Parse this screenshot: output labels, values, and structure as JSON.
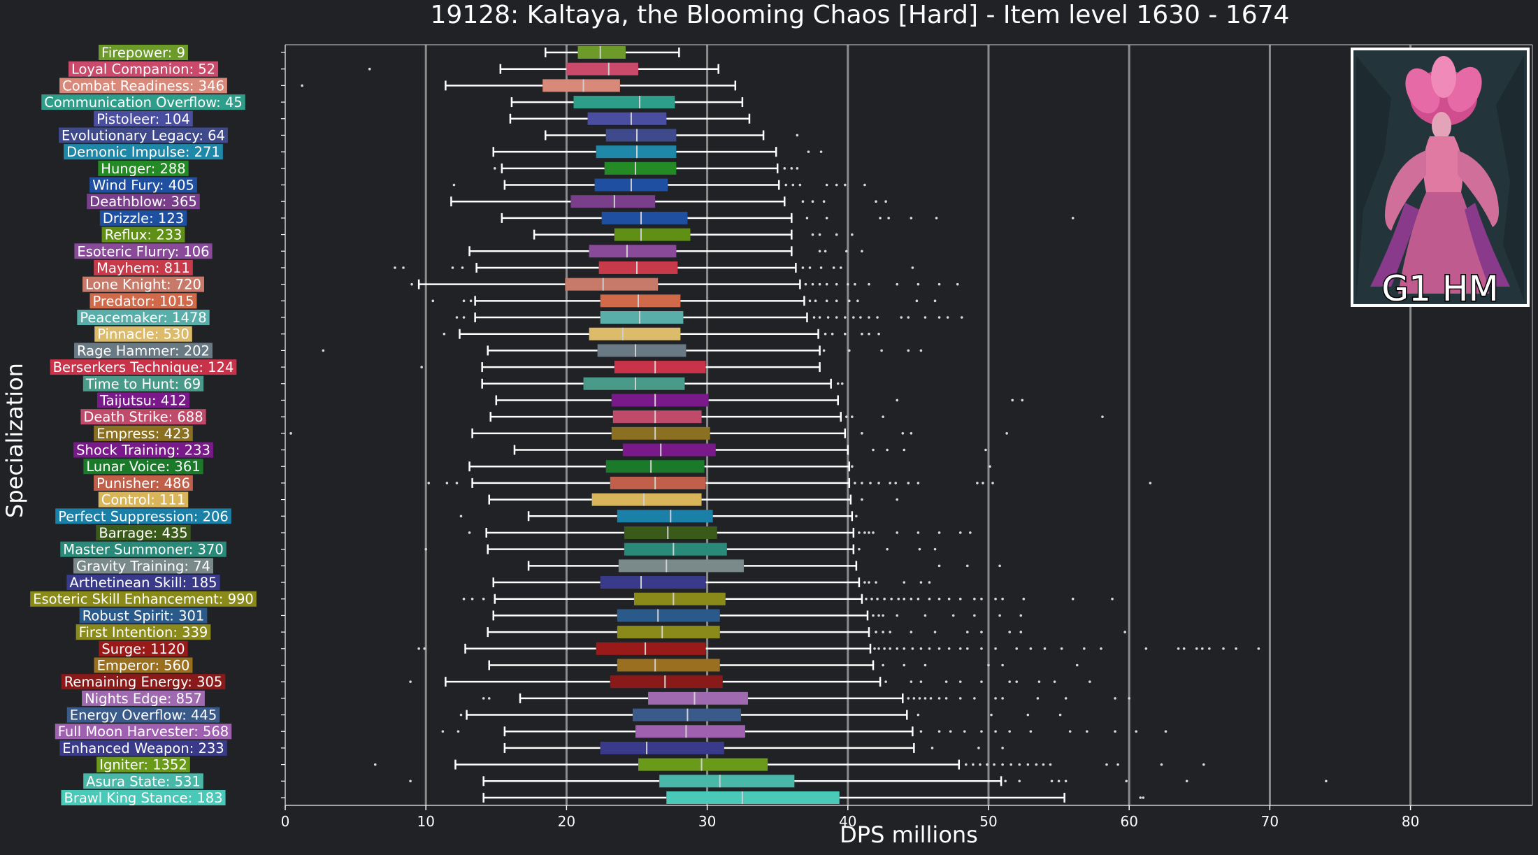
{
  "chart_data": {
    "type": "boxplot",
    "title": "19128: Kaltaya, the Blooming Chaos [Hard] - Item level 1630 - 1674",
    "xlabel": "DPS millions",
    "ylabel": "Specialization",
    "xlim": [
      0,
      89
    ],
    "xticks": [
      0,
      10,
      20,
      30,
      40,
      50,
      60,
      70,
      80
    ],
    "vertical_gridlines": [
      10,
      20,
      30,
      40,
      50,
      60,
      70,
      80
    ],
    "orientation": "horizontal",
    "inset_image": {
      "caption": "G1 HM",
      "depicts": "boss artwork (pink flower-crowned figure)"
    },
    "colors": {
      "background": "#202226",
      "grid": "#8c8c8c",
      "whisker": "#ffffff",
      "outlier": "#d9d9d9"
    },
    "series": [
      {
        "name": "Firepower",
        "label": "Firepower: 9",
        "color": "#6c9b2a",
        "min": 18.5,
        "q1": 20.8,
        "median": 22.4,
        "q3": 24.2,
        "max": 28.0,
        "outliers": []
      },
      {
        "name": "Loyal Companion",
        "label": "Loyal Companion: 52",
        "color": "#c94a6a",
        "min": 15.3,
        "q1": 20.0,
        "median": 23.0,
        "q3": 25.1,
        "max": 30.8,
        "outliers": [
          6.0
        ]
      },
      {
        "name": "Combat Readiness",
        "label": "Combat Readiness: 346",
        "color": "#d9897a",
        "min": 11.4,
        "q1": 18.3,
        "median": 21.2,
        "q3": 23.8,
        "max": 32.0,
        "outliers": [
          1.2
        ]
      },
      {
        "name": "Communication Overflow",
        "label": "Communication Overflow: 45",
        "color": "#2e9e8a",
        "min": 16.1,
        "q1": 20.5,
        "median": 25.2,
        "q3": 27.7,
        "max": 32.5,
        "outliers": []
      },
      {
        "name": "Pistoleer",
        "label": "Pistoleer: 104",
        "color": "#4a4ea0",
        "min": 16.0,
        "q1": 21.5,
        "median": 24.6,
        "q3": 27.1,
        "max": 33.0,
        "outliers": []
      },
      {
        "name": "Evolutionary Legacy",
        "label": "Evolutionary Legacy: 64",
        "color": "#3f4a8c",
        "min": 18.5,
        "q1": 22.8,
        "median": 25.0,
        "q3": 27.8,
        "max": 34.0,
        "outliers": [
          36.4
        ]
      },
      {
        "name": "Demonic Impulse",
        "label": "Demonic Impulse: 271",
        "color": "#1f88a8",
        "min": 14.8,
        "q1": 22.1,
        "median": 25.0,
        "q3": 27.8,
        "max": 34.9,
        "outliers": [
          37.2,
          38.1
        ]
      },
      {
        "name": "Hunger",
        "label": "Hunger: 288",
        "color": "#238a25",
        "min": 15.4,
        "q1": 22.7,
        "median": 24.9,
        "q3": 27.8,
        "max": 35.0,
        "outliers": [
          14.9,
          35.5,
          36.0,
          36.4
        ]
      },
      {
        "name": "Wind Fury",
        "label": "Wind Fury: 405",
        "color": "#1f4fa0",
        "min": 15.6,
        "q1": 22.0,
        "median": 24.6,
        "q3": 27.2,
        "max": 35.1,
        "outliers": [
          12.0,
          35.6,
          36.1,
          36.6,
          38.5,
          39.2,
          39.8,
          41.2
        ]
      },
      {
        "name": "Deathblow",
        "label": "Deathblow: 365",
        "color": "#7a3f8a",
        "min": 11.8,
        "q1": 20.3,
        "median": 23.4,
        "q3": 26.3,
        "max": 35.5,
        "outliers": [
          36.8,
          37.5,
          38.3,
          42.0,
          42.7
        ]
      },
      {
        "name": "Drizzle",
        "label": "Drizzle: 123",
        "color": "#1f4fa0",
        "min": 15.4,
        "q1": 22.5,
        "median": 25.3,
        "q3": 28.6,
        "max": 36.0,
        "outliers": [
          37.1,
          38.5,
          42.3,
          42.9,
          44.5,
          46.3,
          56.0
        ]
      },
      {
        "name": "Reflux",
        "label": "Reflux: 233",
        "color": "#5f9015",
        "min": 17.7,
        "q1": 23.4,
        "median": 25.3,
        "q3": 28.8,
        "max": 36.0,
        "outliers": [
          37.5,
          38.0,
          39.2,
          40.3
        ]
      },
      {
        "name": "Esoteric Flurry",
        "label": "Esoteric Flurry: 106",
        "color": "#8a4a9a",
        "min": 13.1,
        "q1": 21.6,
        "median": 24.3,
        "q3": 27.8,
        "max": 36.0,
        "outliers": [
          38.0,
          38.4,
          39.9,
          41.0
        ]
      },
      {
        "name": "Mayhem",
        "label": "Mayhem: 811",
        "color": "#c73a4a",
        "min": 13.6,
        "q1": 22.3,
        "median": 25.0,
        "q3": 27.9,
        "max": 36.3,
        "outliers": [
          7.8,
          8.4,
          11.9,
          12.6,
          36.8,
          37.3,
          38.1,
          39.0,
          39.5,
          44.6
        ]
      },
      {
        "name": "Lone Knight",
        "label": "Lone Knight: 720",
        "color": "#c87a6a",
        "min": 9.5,
        "q1": 19.9,
        "median": 22.6,
        "q3": 26.5,
        "max": 36.6,
        "outliers": [
          9.0,
          37.0,
          37.5,
          38.0,
          38.5,
          39.2,
          40.0,
          40.5,
          41.5,
          43.5,
          45.0,
          46.5,
          47.8
        ]
      },
      {
        "name": "Predator",
        "label": "Predator: 1015",
        "color": "#d06a4a",
        "min": 13.5,
        "q1": 22.4,
        "median": 25.1,
        "q3": 28.1,
        "max": 36.9,
        "outliers": [
          10.5,
          12.7,
          13.2,
          37.3,
          37.7,
          38.5,
          39.2,
          40.1,
          40.7,
          44.9,
          46.2
        ]
      },
      {
        "name": "Peacemaker",
        "label": "Peacemaker: 1478",
        "color": "#5aaeaa",
        "min": 13.5,
        "q1": 22.4,
        "median": 25.2,
        "q3": 28.3,
        "max": 37.1,
        "outliers": [
          12.2,
          12.7,
          37.6,
          38.0,
          38.6,
          39.2,
          39.8,
          40.4,
          40.9,
          41.5,
          42.1,
          43.8,
          44.3,
          45.5,
          46.5,
          47.1,
          48.1
        ]
      },
      {
        "name": "Pinnacle",
        "label": "Pinnacle: 530",
        "color": "#dcbc6a",
        "min": 12.4,
        "q1": 21.6,
        "median": 24.0,
        "q3": 28.1,
        "max": 37.9,
        "outliers": [
          11.3,
          38.4,
          38.9,
          39.8,
          41.0,
          41.5,
          42.2
        ]
      },
      {
        "name": "Rage Hammer",
        "label": "Rage Hammer: 202",
        "color": "#6a7a84",
        "min": 14.4,
        "q1": 22.2,
        "median": 24.9,
        "q3": 28.5,
        "max": 38.0,
        "outliers": [
          2.7,
          38.3,
          40.1,
          42.4,
          44.3,
          45.2
        ]
      },
      {
        "name": "Berserkers Technique",
        "label": "Berserkers Technique: 124",
        "color": "#c8334a",
        "min": 14.0,
        "q1": 23.4,
        "median": 26.3,
        "q3": 29.9,
        "max": 38.0,
        "outliers": [
          9.7
        ]
      },
      {
        "name": "Time to Hunt",
        "label": "Time to Hunt: 69",
        "color": "#4a9a8a",
        "min": 14.0,
        "q1": 21.2,
        "median": 24.9,
        "q3": 28.4,
        "max": 38.8,
        "outliers": [
          39.3,
          39.6
        ]
      },
      {
        "name": "Taijutsu",
        "label": "Taijutsu: 412",
        "color": "#7a1a8a",
        "min": 15.0,
        "q1": 23.2,
        "median": 26.3,
        "q3": 30.1,
        "max": 39.3,
        "outliers": [
          43.5,
          51.7,
          52.4
        ]
      },
      {
        "name": "Death Strike",
        "label": "Death Strike: 688",
        "color": "#c04a6a",
        "min": 14.6,
        "q1": 23.3,
        "median": 26.3,
        "q3": 29.6,
        "max": 39.5,
        "outliers": [
          39.9,
          40.3,
          42.5,
          58.1
        ]
      },
      {
        "name": "Empress",
        "label": "Empress: 423",
        "color": "#8a7020",
        "min": 13.3,
        "q1": 23.2,
        "median": 26.3,
        "q3": 30.2,
        "max": 39.8,
        "outliers": [
          0.4,
          41.0,
          43.9,
          44.5,
          51.3
        ]
      },
      {
        "name": "Shock Training",
        "label": "Shock Training: 233",
        "color": "#7a1a8a",
        "min": 16.3,
        "q1": 24.0,
        "median": 26.7,
        "q3": 30.6,
        "max": 40.0,
        "outliers": [
          41.8,
          42.8,
          44.0,
          49.8
        ]
      },
      {
        "name": "Lunar Voice",
        "label": "Lunar Voice: 361",
        "color": "#1a7a2a",
        "min": 13.1,
        "q1": 22.8,
        "median": 26.0,
        "q3": 29.8,
        "max": 40.1,
        "outliers": [
          40.3,
          50.1
        ]
      },
      {
        "name": "Punisher",
        "label": "Punisher: 486",
        "color": "#c0604a",
        "min": 13.3,
        "q1": 23.1,
        "median": 26.3,
        "q3": 29.9,
        "max": 40.1,
        "outliers": [
          10.2,
          11.5,
          12.2,
          40.5,
          41.0,
          41.6,
          42.2,
          43.0,
          43.4,
          44.3,
          45.0,
          49.2,
          49.6,
          50.3,
          61.5
        ]
      },
      {
        "name": "Control",
        "label": "Control: 111",
        "color": "#d8b45a",
        "min": 14.5,
        "q1": 21.8,
        "median": 25.5,
        "q3": 29.6,
        "max": 40.2,
        "outliers": [
          41.0,
          43.5
        ]
      },
      {
        "name": "Perfect Suppression",
        "label": "Perfect Suppression: 206",
        "color": "#1a80a8",
        "min": 17.3,
        "q1": 23.6,
        "median": 27.4,
        "q3": 30.4,
        "max": 40.3,
        "outliers": [
          12.5,
          40.6
        ]
      },
      {
        "name": "Barrage",
        "label": "Barrage: 435",
        "color": "#3a5a1a",
        "min": 14.3,
        "q1": 24.1,
        "median": 27.2,
        "q3": 30.7,
        "max": 40.4,
        "outliers": [
          13.1,
          40.8,
          41.2,
          41.5,
          41.8,
          43.5,
          45.0,
          46.5,
          48.0,
          48.7
        ]
      },
      {
        "name": "Master Summoner",
        "label": "Master Summoner: 370",
        "color": "#2a8a7a",
        "min": 14.4,
        "q1": 24.1,
        "median": 27.6,
        "q3": 31.4,
        "max": 40.4,
        "outliers": [
          10.0,
          40.8,
          42.8,
          45.1,
          46.2
        ]
      },
      {
        "name": "Gravity Training",
        "label": "Gravity Training: 74",
        "color": "#7a8a8a",
        "min": 17.3,
        "q1": 23.7,
        "median": 27.1,
        "q3": 32.6,
        "max": 40.6,
        "outliers": [
          46.5,
          48.5,
          50.8
        ]
      },
      {
        "name": "Arthetinean Skill",
        "label": "Arthetinean Skill: 185",
        "color": "#3a3a8a",
        "min": 14.8,
        "q1": 22.4,
        "median": 25.3,
        "q3": 29.9,
        "max": 40.8,
        "outliers": [
          41.2,
          41.5,
          42.0,
          44.0,
          45.2,
          45.8
        ]
      },
      {
        "name": "Esoteric Skill Enhancement",
        "label": "Esoteric Skill Enhancement: 990",
        "color": "#8a8a1a",
        "min": 14.9,
        "q1": 24.8,
        "median": 27.6,
        "q3": 31.3,
        "max": 41.0,
        "outliers": [
          12.7,
          13.3,
          14.1,
          41.3,
          41.7,
          42.1,
          42.6,
          43.1,
          43.6,
          44.0,
          44.5,
          45.0,
          45.8,
          46.5,
          47.2,
          48.0,
          49.0,
          49.5,
          50.5,
          51.0,
          52.5,
          56.0,
          58.8
        ]
      },
      {
        "name": "Robust Spirit",
        "label": "Robust Spirit: 301",
        "color": "#2a5a8a",
        "min": 14.8,
        "q1": 23.6,
        "median": 26.5,
        "q3": 30.9,
        "max": 41.4,
        "outliers": [
          41.8,
          42.2,
          42.5,
          43.5,
          45.5,
          47.5,
          49.0,
          50.8,
          52.3
        ]
      },
      {
        "name": "First Intention",
        "label": "First Intention: 339",
        "color": "#8a8a1a",
        "min": 14.4,
        "q1": 23.6,
        "median": 26.8,
        "q3": 30.9,
        "max": 41.5,
        "outliers": [
          42.0,
          42.5,
          43.0,
          44.5,
          46.2,
          48.5,
          49.5,
          51.5,
          52.3,
          59.7
        ]
      },
      {
        "name": "Surge",
        "label": "Surge: 1120",
        "color": "#9a1a1a",
        "min": 12.8,
        "q1": 22.1,
        "median": 25.6,
        "q3": 29.9,
        "max": 41.6,
        "outliers": [
          9.5,
          9.9,
          41.9,
          42.2,
          42.6,
          43.0,
          43.5,
          44.0,
          44.6,
          45.2,
          45.8,
          46.5,
          47.2,
          48.0,
          48.5,
          49.5,
          50.5,
          52.0,
          53.0,
          54.0,
          55.2,
          56.8,
          58.0,
          61.2,
          63.5,
          63.9,
          64.8,
          65.2,
          65.7,
          66.7,
          67.6,
          69.2
        ]
      },
      {
        "name": "Emperor",
        "label": "Emperor: 560",
        "color": "#9a7020",
        "min": 14.5,
        "q1": 23.6,
        "median": 26.3,
        "q3": 30.9,
        "max": 41.8,
        "outliers": [
          42.5,
          44.0,
          45.5,
          50.0,
          51.0,
          56.3
        ]
      },
      {
        "name": "Remaining Energy",
        "label": "Remaining Energy: 305",
        "color": "#8a1a1a",
        "min": 11.4,
        "q1": 23.1,
        "median": 27.0,
        "q3": 31.1,
        "max": 42.3,
        "outliers": [
          8.9,
          42.7,
          44.5,
          45.2,
          47.0,
          48.0,
          49.5,
          51.5,
          52.0,
          53.6,
          54.7,
          57.2
        ]
      },
      {
        "name": "Nights Edge",
        "label": "Nights Edge: 857",
        "color": "#a06ab0",
        "min": 16.7,
        "q1": 25.8,
        "median": 29.1,
        "q3": 32.9,
        "max": 43.9,
        "outliers": [
          14.1,
          14.5,
          44.3,
          44.7,
          45.1,
          45.5,
          45.9,
          46.5,
          47.0,
          48.0,
          49.0,
          50.5,
          51.0,
          53.5,
          55.5,
          59.0,
          60.0
        ]
      },
      {
        "name": "Energy Overflow",
        "label": "Energy Overflow: 445",
        "color": "#3a5a8a",
        "min": 12.9,
        "q1": 24.7,
        "median": 28.6,
        "q3": 32.4,
        "max": 44.2,
        "outliers": [
          12.5,
          45.0,
          50.2,
          52.8,
          55.1
        ]
      },
      {
        "name": "Full Moon Harvester",
        "label": "Full Moon Harvester: 568",
        "color": "#a060b0",
        "min": 15.6,
        "q1": 24.9,
        "median": 28.5,
        "q3": 32.7,
        "max": 44.6,
        "outliers": [
          11.2,
          12.3,
          45.2,
          46.5,
          47.3,
          48.3,
          49.5,
          50.5,
          51.5,
          53.0,
          55.8,
          57.0,
          59.0,
          60.5,
          62.6
        ]
      },
      {
        "name": "Enhanced Weapon",
        "label": "Enhanced Weapon: 233",
        "color": "#3a3a8a",
        "min": 15.6,
        "q1": 22.4,
        "median": 25.7,
        "q3": 31.2,
        "max": 44.7,
        "outliers": [
          46.0,
          49.3,
          51.0
        ]
      },
      {
        "name": "Igniter",
        "label": "Igniter: 1352",
        "color": "#6a9a1a",
        "min": 12.1,
        "q1": 25.1,
        "median": 29.6,
        "q3": 34.3,
        "max": 47.9,
        "outliers": [
          6.4,
          48.4,
          48.9,
          49.4,
          49.9,
          50.4,
          51.0,
          51.6,
          52.2,
          52.8,
          53.4,
          53.9,
          54.4,
          58.4,
          59.2,
          62.3,
          65.3
        ]
      },
      {
        "name": "Asura State",
        "label": "Asura State: 531",
        "color": "#4ab8a8",
        "min": 14.1,
        "q1": 26.6,
        "median": 30.9,
        "q3": 36.2,
        "max": 50.9,
        "outliers": [
          8.9,
          51.2,
          52.2,
          54.5,
          55.0,
          55.5,
          59.8,
          64.1,
          74.0
        ]
      },
      {
        "name": "Brawl King Stance",
        "label": "Brawl King Stance: 183",
        "color": "#4ac8b8",
        "min": 14.1,
        "q1": 27.1,
        "median": 32.5,
        "q3": 39.4,
        "max": 55.4,
        "outliers": [
          60.8,
          61.0
        ]
      }
    ]
  }
}
